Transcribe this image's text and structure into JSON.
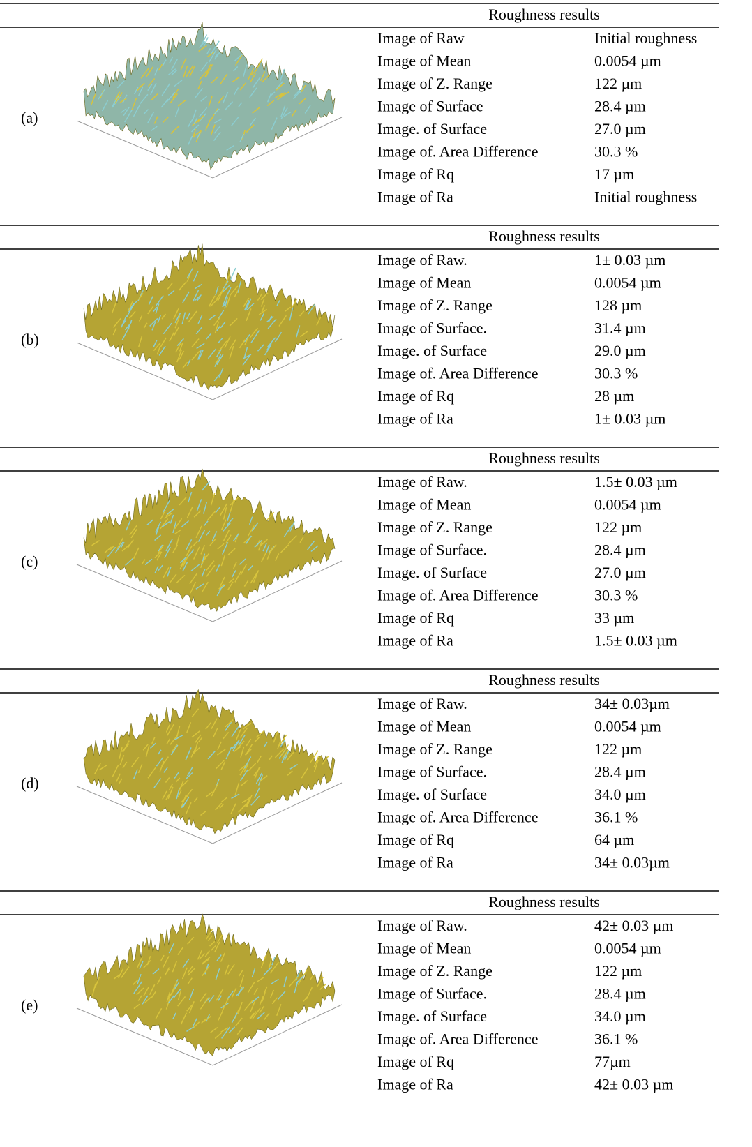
{
  "panels": [
    {
      "label": "(a)",
      "header": "Roughness results",
      "rows": [
        [
          "Image of Raw",
          "Initial roughness"
        ],
        [
          "Image of Mean",
          "0.0054 µm"
        ],
        [
          "Image of Z. Range",
          "122 µm"
        ],
        [
          "Image of Surface",
          "28.4 µm"
        ],
        [
          "Image. of Surface",
          "27.0 µm"
        ],
        [
          "Image of. Area Difference",
          "30.3 %"
        ],
        [
          "Image of Rq",
          "17 µm"
        ],
        [
          "Image of Ra",
          "Initial roughness"
        ]
      ]
    },
    {
      "label": "(b)",
      "header": "Roughness results",
      "rows": [
        [
          "Image of Raw.",
          "1± 0.03 µm"
        ],
        [
          "Image of Mean",
          "0.0054 µm"
        ],
        [
          "Image of Z. Range",
          "128 µm"
        ],
        [
          "Image of Surface.",
          "31.4 µm"
        ],
        [
          "Image. of Surface",
          "29.0 µm"
        ],
        [
          "Image of. Area Difference",
          "30.3 %"
        ],
        [
          "Image of Rq",
          "28 µm"
        ],
        [
          "Image of Ra",
          "1± 0.03 µm"
        ]
      ]
    },
    {
      "label": "(c)",
      "header": "Roughness results",
      "rows": [
        [
          "Image of Raw.",
          "1.5± 0.03 µm"
        ],
        [
          "Image of Mean",
          "0.0054 µm"
        ],
        [
          "Image of Z. Range",
          "122 µm"
        ],
        [
          "Image of Surface.",
          "28.4 µm"
        ],
        [
          "Image. of Surface",
          "27.0 µm"
        ],
        [
          "Image of. Area Difference",
          "30.3 %"
        ],
        [
          "Image of Rq",
          "33 µm"
        ],
        [
          "Image of Ra",
          "1.5± 0.03 µm"
        ]
      ]
    },
    {
      "label": "(d)",
      "header": "Roughness results",
      "rows": [
        [
          "Image of Raw.",
          "34± 0.03µm"
        ],
        [
          "Image of Mean",
          "0.0054 µm"
        ],
        [
          "Image of Z. Range",
          "122 µm"
        ],
        [
          "Image of Surface.",
          "28.4 µm"
        ],
        [
          "Image. of Surface",
          "34.0 µm"
        ],
        [
          "Image of. Area Difference",
          "36.1 %"
        ],
        [
          "Image of Rq",
          "64 µm"
        ],
        [
          "Image of Ra",
          "34± 0.03µm"
        ]
      ]
    },
    {
      "label": "(e)",
      "header": "Roughness results",
      "rows": [
        [
          "Image of Raw.",
          "42± 0.03 µm"
        ],
        [
          "Image of Mean",
          "0.0054 µm"
        ],
        [
          "Image of Z. Range",
          "122 µm"
        ],
        [
          "Image of Surface.",
          "28.4 µm"
        ],
        [
          "Image. of Surface",
          "34.0 µm"
        ],
        [
          "Image of. Area Difference",
          "36.1 %"
        ],
        [
          "Image of Rq",
          "77µm"
        ],
        [
          "Image of Ra",
          "42± 0.03 µm"
        ]
      ]
    }
  ]
}
